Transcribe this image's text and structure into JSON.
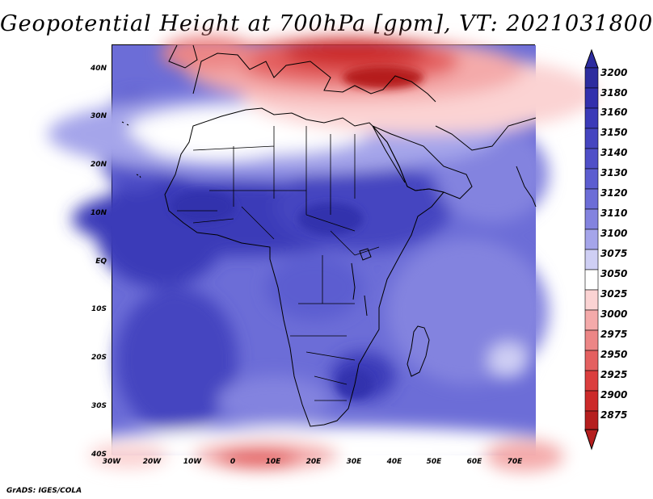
{
  "title": "Geopotential Height at 700hPa [gpm], VT: 2021031800",
  "footer": "GrADS: IGES/COLA",
  "map": {
    "lat_labels": [
      "40N",
      "30N",
      "20N",
      "10N",
      "EQ",
      "10S",
      "20S",
      "30S",
      "40S"
    ],
    "lon_labels": [
      "30W",
      "20W",
      "10W",
      "0",
      "10E",
      "20E",
      "30E",
      "40E",
      "50E",
      "60E",
      "70E"
    ]
  },
  "legend": {
    "levels": [
      "3200",
      "3180",
      "3160",
      "3150",
      "3140",
      "3130",
      "3120",
      "3110",
      "3100",
      "3075",
      "3050",
      "3025",
      "3000",
      "2975",
      "2950",
      "2925",
      "2900",
      "2875"
    ],
    "colors": [
      "#2d2c9f",
      "#3330ad",
      "#3b3ab8",
      "#4545c0",
      "#4f4fc8",
      "#5c5dd0",
      "#6c6dd7",
      "#8383df",
      "#a5a5ea",
      "#cfcff4",
      "#ffffff",
      "#fbd3d3",
      "#f4aaaa",
      "#ec8686",
      "#e46060",
      "#db3e3e",
      "#cc2a2a",
      "#b51e1e"
    ]
  }
}
